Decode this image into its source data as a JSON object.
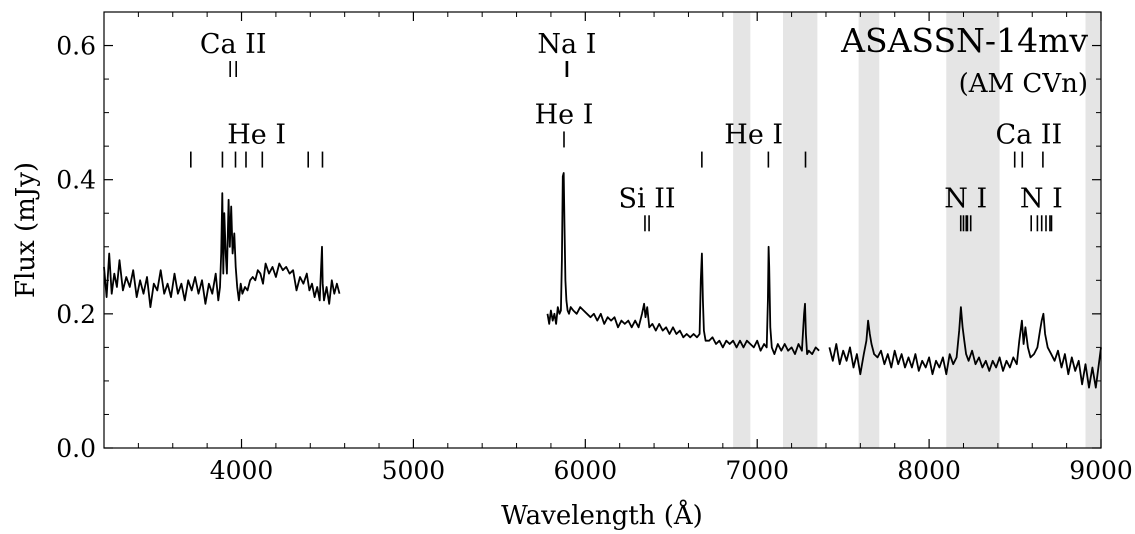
{
  "chart_data": {
    "type": "line",
    "title": "ASASSN-14mv",
    "subtitle": "(AM CVn)",
    "xlabel": "Wavelength (Å)",
    "ylabel": "Flux (mJy)",
    "xlim": [
      3200,
      9000
    ],
    "ylim": [
      0.0,
      0.65
    ],
    "x_ticks": [
      4000,
      5000,
      6000,
      7000,
      8000,
      9000
    ],
    "y_ticks": [
      0.0,
      0.2,
      0.4,
      0.6
    ],
    "x_tick_labels": [
      "4000",
      "5000",
      "6000",
      "7000",
      "8000",
      "9000"
    ],
    "y_tick_labels": [
      "0.0",
      "0.2",
      "0.4",
      "0.6"
    ],
    "grid": false,
    "colors": {
      "spectrum": "#000000",
      "telluric_band": "#e5e5e5"
    },
    "telluric_bands": [
      [
        6860,
        6960
      ],
      [
        7150,
        7350
      ],
      [
        7590,
        7710
      ],
      [
        8100,
        8410
      ],
      [
        8910,
        9000
      ]
    ],
    "line_markers": [
      {
        "label": "Ca II",
        "wavelengths": [
          3934,
          3969
        ],
        "flux": 0.565
      },
      {
        "label": "Na I",
        "wavelengths": [
          5890,
          5896
        ],
        "flux": 0.565
      },
      {
        "label": "He I",
        "wavelengths": [
          3705,
          3889,
          3965,
          4026,
          4121,
          4388,
          4471
        ],
        "flux": 0.43
      },
      {
        "label": "He I",
        "wavelengths": [
          5876
        ],
        "flux": 0.46
      },
      {
        "label": "He I",
        "wavelengths": [
          6678,
          7065,
          7281
        ],
        "flux": 0.43
      },
      {
        "label": "Ca II",
        "wavelengths": [
          8498,
          8542,
          8662
        ],
        "flux": 0.43
      },
      {
        "label": "Si II",
        "wavelengths": [
          6347,
          6371
        ],
        "flux": 0.335
      },
      {
        "label": "N I",
        "wavelengths": [
          8184,
          8200,
          8216,
          8223,
          8242
        ],
        "flux": 0.335
      },
      {
        "label": "N I",
        "wavelengths": [
          8594,
          8630,
          8655,
          8680,
          8703,
          8712
        ],
        "flux": 0.335
      }
    ],
    "series": [
      {
        "segments": [
          {
            "x": [
              3200,
              3215,
              3230,
              3245,
              3260,
              3275,
              3290,
              3310,
              3330,
              3350,
              3370,
              3390,
              3410,
              3430,
              3450,
              3470,
              3490,
              3510,
              3530,
              3550,
              3570,
              3590,
              3610,
              3630,
              3650,
              3670,
              3690,
              3710,
              3730,
              3750,
              3770,
              3790,
              3810,
              3830,
              3850,
              3865,
              3875,
              3882,
              3888,
              3894,
              3900,
              3908,
              3915,
              3925,
              3932,
              3940,
              3948,
              3958,
              3966,
              3975,
              3985,
              3995,
              4005,
              4020,
              4035,
              4050,
              4065,
              4080,
              4095,
              4110,
              4125,
              4140,
              4160,
              4180,
              4200,
              4220,
              4240,
              4260,
              4280,
              4300,
              4320,
              4340,
              4360,
              4380,
              4395,
              4410,
              4425,
              4440,
              4455,
              4468,
              4472,
              4480,
              4495,
              4510,
              4525,
              4540,
              4555,
              4570
            ],
            "y": [
              0.27,
              0.225,
              0.29,
              0.23,
              0.26,
              0.24,
              0.28,
              0.235,
              0.255,
              0.24,
              0.265,
              0.225,
              0.25,
              0.23,
              0.255,
              0.21,
              0.245,
              0.235,
              0.265,
              0.23,
              0.245,
              0.225,
              0.26,
              0.23,
              0.245,
              0.22,
              0.25,
              0.235,
              0.255,
              0.23,
              0.25,
              0.215,
              0.245,
              0.23,
              0.26,
              0.22,
              0.24,
              0.29,
              0.38,
              0.26,
              0.35,
              0.29,
              0.26,
              0.37,
              0.3,
              0.36,
              0.29,
              0.32,
              0.27,
              0.24,
              0.22,
              0.245,
              0.23,
              0.24,
              0.235,
              0.25,
              0.255,
              0.25,
              0.265,
              0.26,
              0.245,
              0.275,
              0.26,
              0.27,
              0.255,
              0.275,
              0.265,
              0.27,
              0.26,
              0.265,
              0.235,
              0.255,
              0.245,
              0.26,
              0.235,
              0.245,
              0.225,
              0.24,
              0.22,
              0.3,
              0.245,
              0.22,
              0.24,
              0.215,
              0.25,
              0.23,
              0.245,
              0.23
            ]
          },
          {
            "x": [
              5780,
              5790,
              5800,
              5810,
              5820,
              5830,
              5840,
              5850,
              5858,
              5864,
              5869,
              5874,
              5879,
              5884,
              5890,
              5897,
              5905,
              5915,
              5930,
              5950,
              5970,
              5990,
              6010,
              6030,
              6050,
              6070,
              6090,
              6110,
              6130,
              6150,
              6170,
              6190,
              6210,
              6230,
              6250,
              6270,
              6290,
              6310,
              6330,
              6342,
              6350,
              6360,
              6372,
              6390,
              6410,
              6430,
              6450,
              6470,
              6490,
              6510,
              6530,
              6550,
              6570,
              6590,
              6610,
              6630,
              6650,
              6665,
              6672,
              6678,
              6684,
              6690,
              6700,
              6720,
              6740,
              6760,
              6780,
              6800,
              6820,
              6840,
              6860,
              6880,
              6900,
              6920,
              6940,
              6960,
              6980,
              7000,
              7020,
              7040,
              7055,
              7062,
              7066,
              7070,
              7076,
              7085,
              7100,
              7120,
              7140,
              7160,
              7180,
              7200,
              7220,
              7240,
              7260,
              7273,
              7278,
              7283,
              7290,
              7300,
              7320,
              7340,
              7360
            ],
            "y": [
              0.2,
              0.185,
              0.205,
              0.19,
              0.2,
              0.185,
              0.21,
              0.2,
              0.205,
              0.28,
              0.405,
              0.41,
              0.33,
              0.25,
              0.22,
              0.205,
              0.2,
              0.21,
              0.205,
              0.2,
              0.21,
              0.205,
              0.2,
              0.195,
              0.2,
              0.19,
              0.2,
              0.185,
              0.195,
              0.19,
              0.195,
              0.18,
              0.19,
              0.185,
              0.19,
              0.18,
              0.19,
              0.18,
              0.2,
              0.215,
              0.195,
              0.21,
              0.18,
              0.185,
              0.175,
              0.185,
              0.175,
              0.18,
              0.17,
              0.18,
              0.17,
              0.175,
              0.165,
              0.17,
              0.165,
              0.17,
              0.165,
              0.17,
              0.25,
              0.29,
              0.22,
              0.175,
              0.16,
              0.16,
              0.165,
              0.155,
              0.16,
              0.15,
              0.16,
              0.155,
              0.16,
              0.15,
              0.16,
              0.15,
              0.16,
              0.155,
              0.15,
              0.16,
              0.145,
              0.155,
              0.15,
              0.22,
              0.3,
              0.27,
              0.18,
              0.15,
              0.14,
              0.155,
              0.145,
              0.155,
              0.145,
              0.15,
              0.14,
              0.155,
              0.145,
              0.2,
              0.215,
              0.17,
              0.14,
              0.145,
              0.14,
              0.15,
              0.145
            ]
          },
          {
            "x": [
              7420,
              7440,
              7460,
              7480,
              7500,
              7520,
              7540,
              7560,
              7580,
              7600,
              7620,
              7635,
              7645,
              7655,
              7665,
              7680,
              7700,
              7720,
              7740,
              7760,
              7780,
              7800,
              7820,
              7840,
              7860,
              7880,
              7900,
              7920,
              7940,
              7960,
              7980,
              8000,
              8020,
              8040,
              8060,
              8080,
              8100,
              8120,
              8140,
              8160,
              8175,
              8185,
              8195,
              8205,
              8215,
              8230,
              8250,
              8270,
              8290,
              8310,
              8330,
              8350,
              8370,
              8390,
              8410,
              8430,
              8450,
              8470,
              8490,
              8510,
              8525,
              8540,
              8550,
              8560,
              8575,
              8590,
              8610,
              8630,
              8645,
              8655,
              8665,
              8675,
              8690,
              8710,
              8730,
              8750,
              8770,
              8790,
              8810,
              8830,
              8850,
              8870,
              8890,
              8910,
              8930,
              8950,
              8970,
              8985,
              9000
            ],
            "y": [
              0.15,
              0.13,
              0.155,
              0.125,
              0.145,
              0.13,
              0.15,
              0.12,
              0.14,
              0.11,
              0.14,
              0.16,
              0.19,
              0.17,
              0.155,
              0.14,
              0.135,
              0.145,
              0.125,
              0.14,
              0.12,
              0.145,
              0.125,
              0.14,
              0.12,
              0.135,
              0.12,
              0.14,
              0.115,
              0.13,
              0.12,
              0.135,
              0.11,
              0.13,
              0.12,
              0.135,
              0.11,
              0.14,
              0.125,
              0.135,
              0.175,
              0.21,
              0.18,
              0.16,
              0.14,
              0.13,
              0.145,
              0.125,
              0.135,
              0.12,
              0.13,
              0.115,
              0.13,
              0.12,
              0.135,
              0.115,
              0.13,
              0.12,
              0.135,
              0.125,
              0.16,
              0.19,
              0.155,
              0.18,
              0.15,
              0.135,
              0.14,
              0.15,
              0.175,
              0.19,
              0.2,
              0.17,
              0.15,
              0.14,
              0.13,
              0.145,
              0.12,
              0.14,
              0.11,
              0.135,
              0.115,
              0.13,
              0.095,
              0.125,
              0.09,
              0.12,
              0.09,
              0.12,
              0.15
            ]
          }
        ]
      }
    ]
  }
}
